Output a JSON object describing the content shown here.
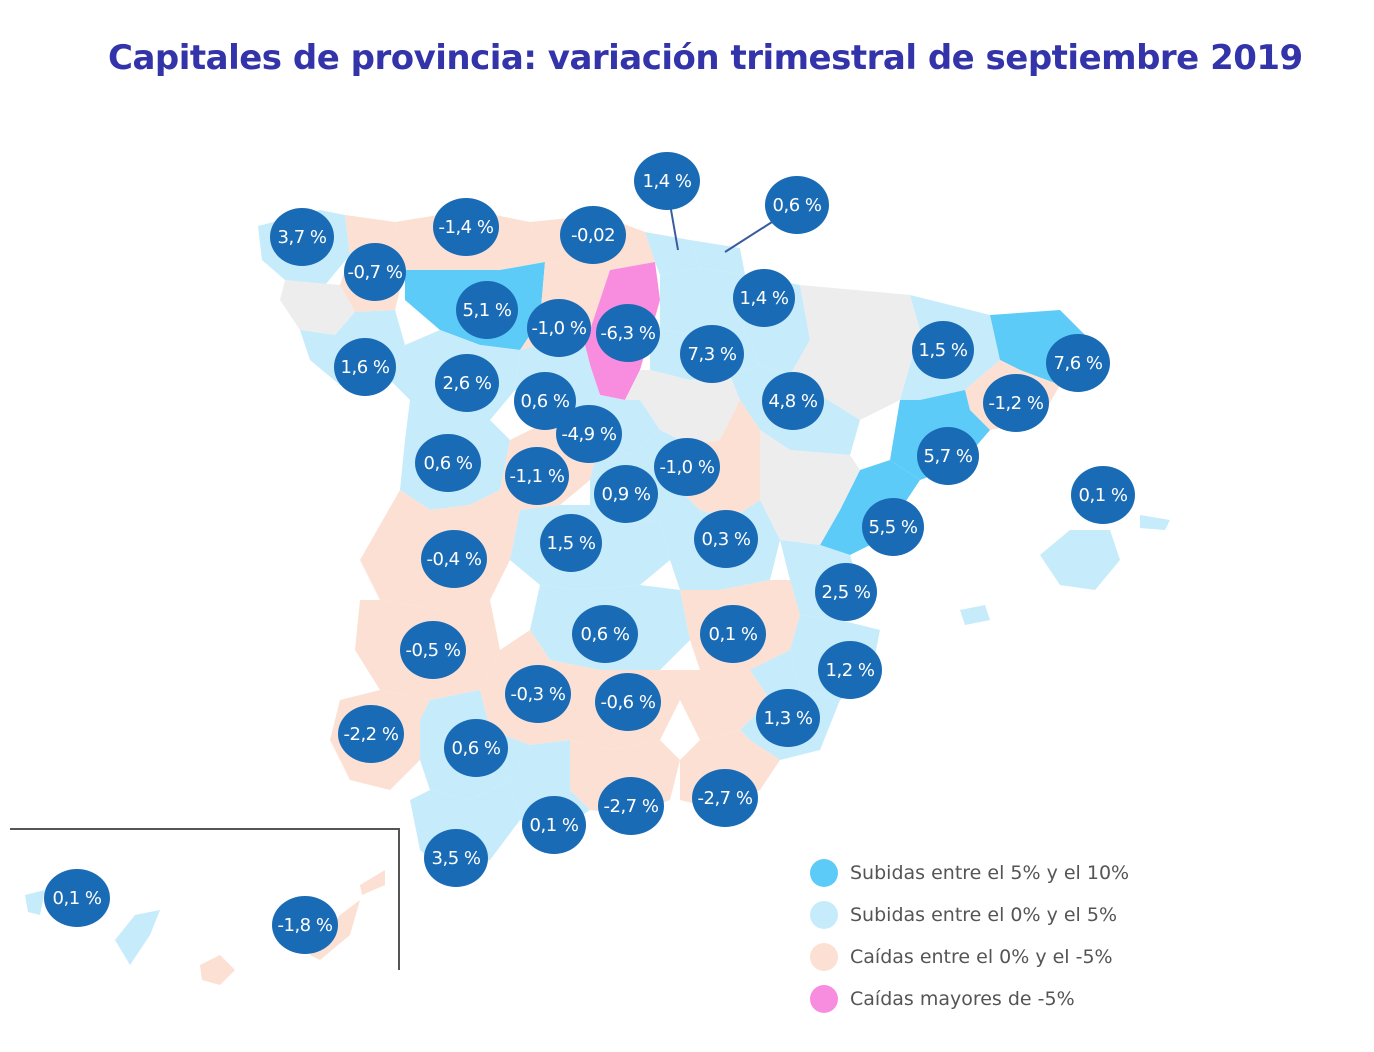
{
  "title": "Capitales de provincia: variación trimestral de septiembre 2019",
  "colors": {
    "strong_rise": "#5dcbf7",
    "mild_rise": "#c6ebfb",
    "mild_fall": "#fbe0d3",
    "strong_fall": "#f88de0",
    "no_data": "#ededed",
    "badge": "#1a6bb5",
    "title": "#3333aa"
  },
  "legend": [
    {
      "label": "Subidas entre el 5% y el 10%",
      "color": "#5dcbf7"
    },
    {
      "label": "Subidas entre el 0% y el 5%",
      "color": "#c6ebfb"
    },
    {
      "label": "Caídas entre el 0% y el -5%",
      "color": "#fbe0d3"
    },
    {
      "label": "Caídas mayores de -5%",
      "color": "#f88de0"
    }
  ],
  "badges": [
    {
      "id": "a-coruna",
      "label": "3,7 %"
    },
    {
      "id": "lugo",
      "label": "-0,7 %"
    },
    {
      "id": "oviedo",
      "label": "-1,4 %"
    },
    {
      "id": "santander",
      "label": "-0,02"
    },
    {
      "id": "bilbao",
      "label": "1,4 %"
    },
    {
      "id": "san-sebastian",
      "label": "0,6 %"
    },
    {
      "id": "leon",
      "label": "5,1 %"
    },
    {
      "id": "palencia",
      "label": "-1,0 %"
    },
    {
      "id": "burgos",
      "label": "-6,3 %"
    },
    {
      "id": "vitoria",
      "label": "7,3 %"
    },
    {
      "id": "pamplona",
      "label": "1,4 %"
    },
    {
      "id": "huesca",
      "label": "1,5 %"
    },
    {
      "id": "girona",
      "label": "7,6 %"
    },
    {
      "id": "pontevedra",
      "label": "1,6 %"
    },
    {
      "id": "zamora",
      "label": "2,6 %"
    },
    {
      "id": "valladolid",
      "label": "0,6 %"
    },
    {
      "id": "logrono",
      "label": "4,8 %"
    },
    {
      "id": "lleida",
      "label": "-1,2 %"
    },
    {
      "id": "segovia",
      "label": "-4,9 %"
    },
    {
      "id": "barcelona",
      "label": "5,7 %"
    },
    {
      "id": "salamanca",
      "label": "0,6 %"
    },
    {
      "id": "avila",
      "label": "-1,1 %"
    },
    {
      "id": "soria",
      "label": "-1,0 %"
    },
    {
      "id": "madrid",
      "label": "0,9 %"
    },
    {
      "id": "palma",
      "label": "0,1 %"
    },
    {
      "id": "tarragona",
      "label": "5,5 %"
    },
    {
      "id": "guadalajara",
      "label": "0,3 %"
    },
    {
      "id": "toledo",
      "label": "1,5 %"
    },
    {
      "id": "caceres",
      "label": "-0,4 %"
    },
    {
      "id": "castellon",
      "label": "2,5 %"
    },
    {
      "id": "ciudad-real",
      "label": "0,6 %"
    },
    {
      "id": "cuenca",
      "label": "0,1 %"
    },
    {
      "id": "badajoz",
      "label": "-0,5 %"
    },
    {
      "id": "valencia",
      "label": "1,2 %"
    },
    {
      "id": "cordoba",
      "label": "-0,3 %"
    },
    {
      "id": "jaen",
      "label": "-0,6 %"
    },
    {
      "id": "alicante",
      "label": "1,3 %"
    },
    {
      "id": "huelva",
      "label": "-2,2 %"
    },
    {
      "id": "sevilla",
      "label": "0,6 %"
    },
    {
      "id": "granada",
      "label": "-2,7 %"
    },
    {
      "id": "murcia",
      "label": "-2,7 %"
    },
    {
      "id": "malaga",
      "label": "0,1 %"
    },
    {
      "id": "cadiz",
      "label": "3,5 %"
    },
    {
      "id": "santa-cruz-tenerife",
      "label": "0,1 %"
    },
    {
      "id": "las-palmas",
      "label": "-1,8 %"
    }
  ]
}
